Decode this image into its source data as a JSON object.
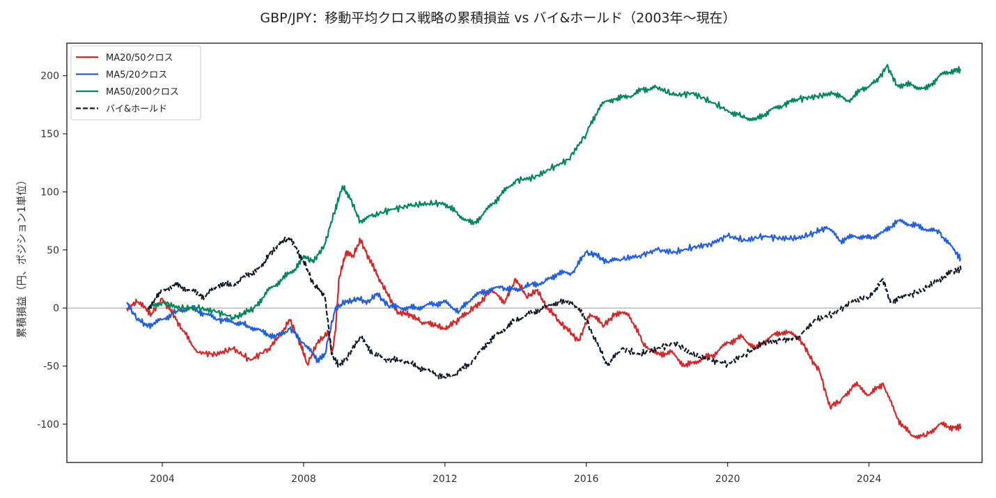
{
  "chart_data": {
    "type": "line",
    "title": "GBP/JPY：移動平均クロス戦略の累積損益 vs バイ&ホールド（2003年〜現在）",
    "xlabel": "",
    "ylabel": "累積損益（円、ポジション1単位）",
    "xlim": [
      2001.3,
      2027.2
    ],
    "ylim": [
      -133,
      228
    ],
    "x_ticks": [
      2004,
      2008,
      2012,
      2016,
      2020,
      2024
    ],
    "x_tick_labels": [
      "2004",
      "2008",
      "2012",
      "2016",
      "2020",
      "2024"
    ],
    "y_ticks": [
      -100,
      -50,
      0,
      50,
      100,
      150,
      200
    ],
    "y_tick_labels": [
      "-100",
      "-50",
      "0",
      "50",
      "100",
      "150",
      "200"
    ],
    "zero_line": true,
    "grid": false,
    "legend_position": "top-left",
    "series": [
      {
        "name": "MA20/50クロス",
        "color": "#d62728",
        "dash": "solid",
        "points": [
          [
            2003.0,
            0
          ],
          [
            2003.3,
            5
          ],
          [
            2003.7,
            -5
          ],
          [
            2004.0,
            8
          ],
          [
            2004.3,
            -5
          ],
          [
            2004.6,
            -20
          ],
          [
            2005.0,
            -38
          ],
          [
            2005.5,
            -40
          ],
          [
            2006.0,
            -35
          ],
          [
            2006.5,
            -45
          ],
          [
            2007.0,
            -35
          ],
          [
            2007.3,
            -25
          ],
          [
            2007.6,
            -10
          ],
          [
            2007.9,
            -30
          ],
          [
            2008.1,
            -48
          ],
          [
            2008.4,
            -30
          ],
          [
            2008.7,
            -20
          ],
          [
            2008.8,
            -40
          ],
          [
            2008.9,
            -20
          ],
          [
            2009.0,
            25
          ],
          [
            2009.2,
            48
          ],
          [
            2009.4,
            45
          ],
          [
            2009.6,
            58
          ],
          [
            2009.9,
            40
          ],
          [
            2010.1,
            28
          ],
          [
            2010.4,
            10
          ],
          [
            2010.7,
            -5
          ],
          [
            2011.0,
            -5
          ],
          [
            2011.3,
            -12
          ],
          [
            2011.7,
            -15
          ],
          [
            2012.0,
            -18
          ],
          [
            2012.3,
            -12
          ],
          [
            2012.7,
            -3
          ],
          [
            2013.0,
            5
          ],
          [
            2013.3,
            15
          ],
          [
            2013.7,
            5
          ],
          [
            2014.0,
            25
          ],
          [
            2014.3,
            10
          ],
          [
            2014.6,
            15
          ],
          [
            2014.9,
            0
          ],
          [
            2015.2,
            -10
          ],
          [
            2015.5,
            -20
          ],
          [
            2015.8,
            -28
          ],
          [
            2016.1,
            -5
          ],
          [
            2016.5,
            -15
          ],
          [
            2016.8,
            -5
          ],
          [
            2017.2,
            -5
          ],
          [
            2017.6,
            -30
          ],
          [
            2018.0,
            -40
          ],
          [
            2018.4,
            -38
          ],
          [
            2018.8,
            -50
          ],
          [
            2019.2,
            -45
          ],
          [
            2019.6,
            -40
          ],
          [
            2020.0,
            -30
          ],
          [
            2020.4,
            -25
          ],
          [
            2020.8,
            -35
          ],
          [
            2021.2,
            -25
          ],
          [
            2021.6,
            -20
          ],
          [
            2022.0,
            -25
          ],
          [
            2022.3,
            -40
          ],
          [
            2022.6,
            -55
          ],
          [
            2022.9,
            -85
          ],
          [
            2023.2,
            -80
          ],
          [
            2023.6,
            -65
          ],
          [
            2024.0,
            -75
          ],
          [
            2024.4,
            -65
          ],
          [
            2024.8,
            -95
          ],
          [
            2025.2,
            -110
          ],
          [
            2025.6,
            -110
          ],
          [
            2026.0,
            -100
          ],
          [
            2026.4,
            -103
          ],
          [
            2026.6,
            -102
          ]
        ]
      },
      {
        "name": "MA5/20クロス",
        "color": "#1f5fe0",
        "dash": "solid",
        "points": [
          [
            2003.0,
            5
          ],
          [
            2003.3,
            -10
          ],
          [
            2003.6,
            -15
          ],
          [
            2004.0,
            -10
          ],
          [
            2004.4,
            -3
          ],
          [
            2004.8,
            0
          ],
          [
            2005.2,
            -5
          ],
          [
            2005.6,
            -10
          ],
          [
            2006.0,
            -12
          ],
          [
            2006.4,
            -15
          ],
          [
            2006.8,
            -20
          ],
          [
            2007.2,
            -25
          ],
          [
            2007.6,
            -18
          ],
          [
            2008.0,
            -30
          ],
          [
            2008.4,
            -45
          ],
          [
            2008.6,
            -40
          ],
          [
            2008.9,
            0
          ],
          [
            2009.2,
            5
          ],
          [
            2009.5,
            8
          ],
          [
            2009.8,
            5
          ],
          [
            2010.1,
            12
          ],
          [
            2010.4,
            2
          ],
          [
            2010.8,
            0
          ],
          [
            2011.2,
            0
          ],
          [
            2011.6,
            3
          ],
          [
            2012.0,
            5
          ],
          [
            2012.4,
            -3
          ],
          [
            2012.8,
            10
          ],
          [
            2013.2,
            15
          ],
          [
            2013.6,
            18
          ],
          [
            2014.0,
            15
          ],
          [
            2014.4,
            20
          ],
          [
            2014.8,
            22
          ],
          [
            2015.2,
            30
          ],
          [
            2015.6,
            30
          ],
          [
            2016.0,
            48
          ],
          [
            2016.3,
            45
          ],
          [
            2016.6,
            40
          ],
          [
            2017.0,
            42
          ],
          [
            2017.5,
            45
          ],
          [
            2018.0,
            50
          ],
          [
            2018.5,
            48
          ],
          [
            2019.0,
            52
          ],
          [
            2019.5,
            55
          ],
          [
            2020.0,
            62
          ],
          [
            2020.5,
            58
          ],
          [
            2021.0,
            62
          ],
          [
            2021.5,
            60
          ],
          [
            2022.0,
            60
          ],
          [
            2022.5,
            65
          ],
          [
            2022.8,
            70
          ],
          [
            2023.2,
            58
          ],
          [
            2023.6,
            62
          ],
          [
            2024.0,
            60
          ],
          [
            2024.4,
            65
          ],
          [
            2024.8,
            75
          ],
          [
            2025.2,
            72
          ],
          [
            2025.6,
            68
          ],
          [
            2026.0,
            65
          ],
          [
            2026.4,
            50
          ],
          [
            2026.6,
            42
          ]
        ]
      },
      {
        "name": "MA50/200クロス",
        "color": "#00875a",
        "dash": "solid",
        "points": [
          [
            2003.6,
            0
          ],
          [
            2004.0,
            5
          ],
          [
            2004.5,
            0
          ],
          [
            2005.0,
            0
          ],
          [
            2005.5,
            -3
          ],
          [
            2006.0,
            -8
          ],
          [
            2006.3,
            -5
          ],
          [
            2006.6,
            0
          ],
          [
            2007.0,
            15
          ],
          [
            2007.4,
            25
          ],
          [
            2007.8,
            35
          ],
          [
            2008.0,
            45
          ],
          [
            2008.3,
            40
          ],
          [
            2008.6,
            55
          ],
          [
            2008.9,
            85
          ],
          [
            2009.1,
            105
          ],
          [
            2009.3,
            95
          ],
          [
            2009.6,
            75
          ],
          [
            2010.0,
            80
          ],
          [
            2010.5,
            85
          ],
          [
            2011.0,
            88
          ],
          [
            2011.5,
            90
          ],
          [
            2012.0,
            90
          ],
          [
            2012.4,
            80
          ],
          [
            2012.8,
            72
          ],
          [
            2013.2,
            85
          ],
          [
            2013.6,
            98
          ],
          [
            2014.0,
            110
          ],
          [
            2014.5,
            112
          ],
          [
            2015.0,
            120
          ],
          [
            2015.5,
            128
          ],
          [
            2016.0,
            150
          ],
          [
            2016.4,
            175
          ],
          [
            2016.8,
            180
          ],
          [
            2017.2,
            182
          ],
          [
            2017.6,
            188
          ],
          [
            2018.0,
            190
          ],
          [
            2018.5,
            183
          ],
          [
            2019.0,
            185
          ],
          [
            2019.5,
            178
          ],
          [
            2020.0,
            170
          ],
          [
            2020.4,
            165
          ],
          [
            2020.8,
            162
          ],
          [
            2021.2,
            170
          ],
          [
            2021.6,
            175
          ],
          [
            2022.0,
            180
          ],
          [
            2022.5,
            182
          ],
          [
            2023.0,
            185
          ],
          [
            2023.4,
            178
          ],
          [
            2023.8,
            188
          ],
          [
            2024.2,
            195
          ],
          [
            2024.5,
            208
          ],
          [
            2024.8,
            192
          ],
          [
            2025.2,
            192
          ],
          [
            2025.6,
            188
          ],
          [
            2026.0,
            200
          ],
          [
            2026.4,
            205
          ],
          [
            2026.6,
            205
          ]
        ]
      },
      {
        "name": "バイ&ホールド",
        "color": "#111827",
        "dash": "dashed",
        "points": [
          [
            2003.6,
            0
          ],
          [
            2004.0,
            15
          ],
          [
            2004.4,
            20
          ],
          [
            2004.8,
            15
          ],
          [
            2005.2,
            10
          ],
          [
            2005.6,
            20
          ],
          [
            2006.0,
            20
          ],
          [
            2006.4,
            28
          ],
          [
            2006.8,
            35
          ],
          [
            2007.0,
            45
          ],
          [
            2007.3,
            55
          ],
          [
            2007.6,
            60
          ],
          [
            2008.0,
            40
          ],
          [
            2008.3,
            20
          ],
          [
            2008.6,
            10
          ],
          [
            2008.8,
            -40
          ],
          [
            2009.0,
            -50
          ],
          [
            2009.3,
            -40
          ],
          [
            2009.6,
            -25
          ],
          [
            2010.0,
            -40
          ],
          [
            2010.4,
            -45
          ],
          [
            2010.8,
            -45
          ],
          [
            2011.2,
            -50
          ],
          [
            2011.6,
            -55
          ],
          [
            2012.0,
            -60
          ],
          [
            2012.4,
            -55
          ],
          [
            2012.8,
            -45
          ],
          [
            2013.2,
            -30
          ],
          [
            2013.6,
            -20
          ],
          [
            2014.0,
            -10
          ],
          [
            2014.4,
            -5
          ],
          [
            2014.8,
            0
          ],
          [
            2015.2,
            5
          ],
          [
            2015.6,
            5
          ],
          [
            2016.0,
            -10
          ],
          [
            2016.3,
            -30
          ],
          [
            2016.6,
            -50
          ],
          [
            2017.0,
            -35
          ],
          [
            2017.5,
            -40
          ],
          [
            2018.0,
            -35
          ],
          [
            2018.5,
            -30
          ],
          [
            2019.0,
            -40
          ],
          [
            2019.5,
            -45
          ],
          [
            2020.0,
            -48
          ],
          [
            2020.5,
            -40
          ],
          [
            2021.0,
            -30
          ],
          [
            2021.5,
            -28
          ],
          [
            2022.0,
            -25
          ],
          [
            2022.5,
            -10
          ],
          [
            2023.0,
            -5
          ],
          [
            2023.5,
            5
          ],
          [
            2024.0,
            10
          ],
          [
            2024.4,
            25
          ],
          [
            2024.6,
            5
          ],
          [
            2025.0,
            10
          ],
          [
            2025.5,
            15
          ],
          [
            2026.0,
            25
          ],
          [
            2026.4,
            32
          ],
          [
            2026.6,
            33
          ]
        ]
      }
    ]
  }
}
